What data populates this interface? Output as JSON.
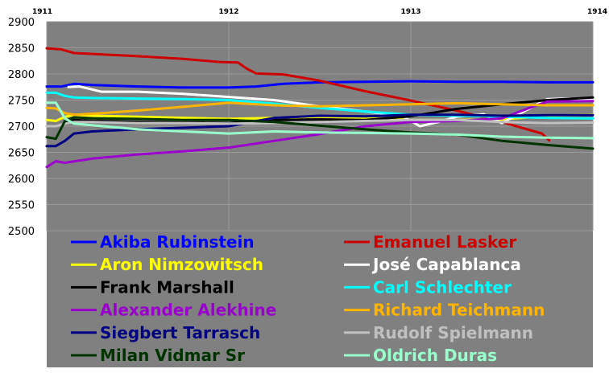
{
  "chart_data": {
    "type": "line",
    "title": "",
    "xlabel": "",
    "ylabel": "",
    "x_ticks": [
      "1911",
      "1912",
      "1913",
      "1914"
    ],
    "xlim": [
      1911,
      1914
    ],
    "ylim": [
      2500,
      2900
    ],
    "y_ticks": [
      "2500",
      "2550",
      "2600",
      "2650",
      "2700",
      "2750",
      "2800",
      "2850",
      "2900"
    ],
    "grid": true,
    "legend_position": "bottom",
    "plot_background": "#808080",
    "series": [
      {
        "name": "Akiba Rubinstein",
        "color": "#0000ff",
        "x": [
          1911,
          1911.08,
          1911.15,
          1911.25,
          1911.5,
          1911.75,
          1912,
          1912.15,
          1912.3,
          1912.5,
          1912.75,
          1913,
          1913.25,
          1913.5,
          1913.75,
          1914
        ],
        "y": [
          2776,
          2776,
          2781,
          2779,
          2776,
          2774,
          2774,
          2776,
          2781,
          2784,
          2785,
          2786,
          2785,
          2785,
          2784,
          2784
        ]
      },
      {
        "name": "Emanuel Lasker",
        "color": "#cc0000",
        "x": [
          1911,
          1911.08,
          1911.15,
          1911.5,
          1911.75,
          1911.95,
          1912.05,
          1912.1,
          1912.15,
          1912.3,
          1912.5,
          1912.75,
          1913,
          1913.25,
          1913.5,
          1913.65,
          1913.72,
          1913.76
        ],
        "y": [
          2849,
          2847,
          2840,
          2834,
          2829,
          2823,
          2822,
          2810,
          2801,
          2799,
          2787,
          2767,
          2749,
          2730,
          2708,
          2693,
          2686,
          2673
        ]
      },
      {
        "name": "Aron Nimzowitsch",
        "color": "#ffff00",
        "x": [
          1911,
          1911.05,
          1911.1,
          1911.15,
          1911.25,
          1911.5,
          1911.75,
          1912,
          1912.25,
          1912.5,
          1912.75,
          1913,
          1913.25,
          1913.5,
          1913.75,
          1914
        ],
        "y": [
          2712,
          2710,
          2718,
          2722,
          2720,
          2718,
          2716,
          2714,
          2716,
          2718,
          2716,
          2712,
          2712,
          2713,
          2720,
          2722
        ]
      },
      {
        "name": "José Capablanca",
        "color": "#ffffff",
        "x": [
          1911.12,
          1911.18,
          1911.3,
          1911.5,
          1911.75,
          1912,
          1912.25,
          1912.5,
          1912.75,
          1912.95,
          1913.05,
          1913.15,
          1913.25,
          1913.4,
          1913.5,
          1913.62,
          1913.75,
          1913.85,
          1914
        ],
        "y": [
          2775,
          2776,
          2766,
          2766,
          2762,
          2756,
          2750,
          2738,
          2728,
          2720,
          2700,
          2708,
          2718,
          2723,
          2706,
          2728,
          2752,
          2753,
          2752
        ]
      },
      {
        "name": "Frank Marshall",
        "color": "#000000",
        "x": [
          1911.1,
          1911.15,
          1911.25,
          1911.5,
          1911.75,
          1912,
          1912.25,
          1912.5,
          1912.75,
          1913,
          1913.25,
          1913.5,
          1913.75,
          1914
        ],
        "y": [
          2706,
          2712,
          2710,
          2708,
          2707,
          2706,
          2712,
          2713,
          2712,
          2719,
          2733,
          2742,
          2750,
          2755
        ]
      },
      {
        "name": "Carl Schlechter",
        "color": "#00ffff",
        "x": [
          1911,
          1911.05,
          1911.1,
          1911.15,
          1911.25,
          1911.5,
          1911.75,
          1912,
          1912.25,
          1912.5,
          1912.75,
          1913,
          1913.25,
          1913.5,
          1913.75,
          1914
        ],
        "y": [
          2764,
          2764,
          2758,
          2755,
          2754,
          2753,
          2752,
          2750,
          2743,
          2735,
          2728,
          2722,
          2720,
          2718,
          2716,
          2715
        ]
      },
      {
        "name": "Alexander Alekhine",
        "color": "#9900cc",
        "x": [
          1911,
          1911.05,
          1911.1,
          1911.25,
          1911.5,
          1911.75,
          1912,
          1912.25,
          1912.5,
          1912.75,
          1913,
          1913.25,
          1913.5,
          1913.65,
          1913.75,
          1914
        ],
        "y": [
          2622,
          2633,
          2630,
          2638,
          2646,
          2652,
          2659,
          2672,
          2685,
          2700,
          2708,
          2710,
          2715,
          2735,
          2747,
          2748
        ]
      },
      {
        "name": "Richard Teichmann",
        "color": "#ffb400",
        "x": [
          1911,
          1911.05,
          1911.1,
          1911.15,
          1911.3,
          1911.5,
          1911.75,
          1912,
          1912.25,
          1912.5,
          1912.75,
          1913,
          1913.25,
          1913.5,
          1913.75,
          1914
        ],
        "y": [
          2735,
          2734,
          2725,
          2722,
          2725,
          2730,
          2737,
          2745,
          2740,
          2738,
          2740,
          2742,
          2744,
          2742,
          2740,
          2740
        ]
      },
      {
        "name": "Siegbert Tarrasch",
        "color": "#000080",
        "x": [
          1911,
          1911.05,
          1911.1,
          1911.15,
          1911.25,
          1911.5,
          1911.75,
          1912,
          1912.25,
          1912.5,
          1912.75,
          1913,
          1913.25,
          1913.5,
          1913.75,
          1914
        ],
        "y": [
          2662,
          2662,
          2672,
          2686,
          2690,
          2694,
          2697,
          2700,
          2716,
          2720,
          2719,
          2722,
          2722,
          2720,
          2721,
          2721
        ]
      },
      {
        "name": "Rudolf Spielmann",
        "color": "#c0c0c0",
        "x": [
          1911,
          1911.05,
          1911.1,
          1911.15,
          1911.25,
          1911.5,
          1911.75,
          1912,
          1912.25,
          1912.5,
          1912.75,
          1913,
          1913.25,
          1913.5,
          1913.75,
          1914
        ],
        "y": [
          2700,
          2700,
          2705,
          2708,
          2708,
          2706,
          2706,
          2705,
          2706,
          2708,
          2710,
          2712,
          2712,
          2708,
          2706,
          2707
        ]
      },
      {
        "name": "Milan Vidmar Sr",
        "color": "#003300",
        "x": [
          1911,
          1911.05,
          1911.1,
          1911.15,
          1911.25,
          1911.5,
          1911.75,
          1912,
          1912.25,
          1912.5,
          1912.75,
          1913,
          1913.25,
          1913.5,
          1913.75,
          1914
        ],
        "y": [
          2679,
          2676,
          2710,
          2717,
          2715,
          2714,
          2712,
          2712,
          2708,
          2701,
          2694,
          2688,
          2684,
          2672,
          2664,
          2657
        ]
      },
      {
        "name": "Oldrich Duras",
        "color": "#99ffcc",
        "x": [
          1911,
          1911.05,
          1911.1,
          1911.15,
          1911.25,
          1911.5,
          1911.75,
          1912,
          1912.25,
          1912.5,
          1912.75,
          1913,
          1913.25,
          1913.5,
          1913.75,
          1914
        ],
        "y": [
          2745,
          2745,
          2715,
          2705,
          2702,
          2694,
          2690,
          2686,
          2690,
          2688,
          2687,
          2686,
          2684,
          2680,
          2678,
          2677
        ]
      }
    ]
  }
}
